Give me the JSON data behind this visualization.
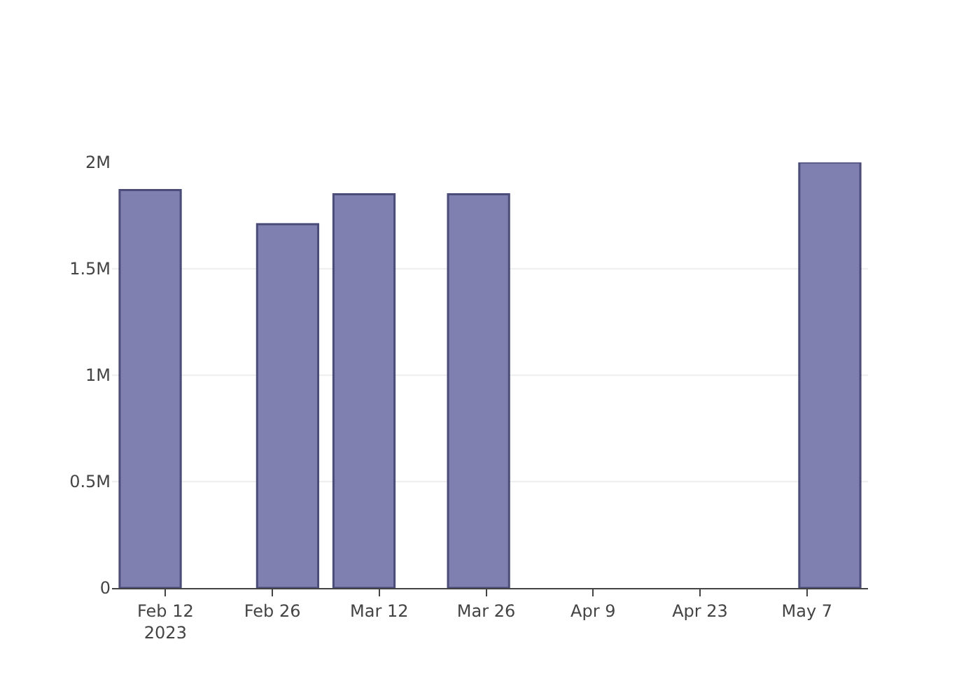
{
  "chart_data": {
    "type": "bar",
    "x": [
      "2023-02-10",
      "2023-02-28",
      "2023-03-10",
      "2023-03-25",
      "2023-05-10"
    ],
    "values": [
      1870000,
      1710000,
      1850000,
      1850000,
      2000000
    ],
    "color": "#7f7fb0",
    "xlim": [
      "2023-02-05",
      "2023-05-15"
    ],
    "xticks": [
      {
        "value": "2023-02-12",
        "label": "Feb 12\n2023"
      },
      {
        "value": "2023-02-26",
        "label": "Feb 26"
      },
      {
        "value": "2023-03-12",
        "label": "Mar 12"
      },
      {
        "value": "2023-03-26",
        "label": "Mar 26"
      },
      {
        "value": "2023-04-09",
        "label": "Apr 9"
      },
      {
        "value": "2023-04-23",
        "label": "Apr 23"
      },
      {
        "value": "2023-05-07",
        "label": "May 7"
      }
    ],
    "ylim": [
      0,
      2000000
    ],
    "yticks": [
      0,
      {
        "value": 500000,
        "label": "0.5M"
      },
      {
        "value": 1000000,
        "label": "1M"
      },
      {
        "value": 1500000,
        "label": "1.5M"
      },
      {
        "value": 2000000,
        "label": "2M"
      }
    ],
    "grid": "y"
  }
}
